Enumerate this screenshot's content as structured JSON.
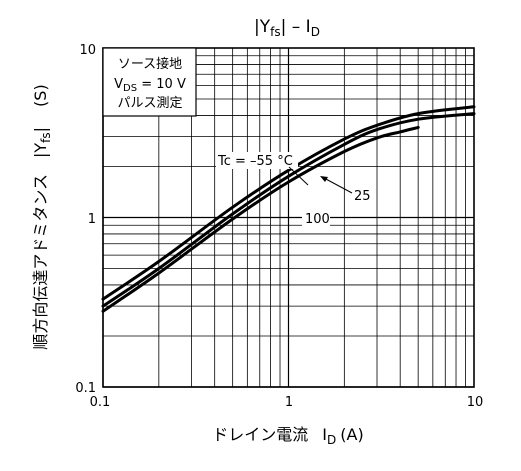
{
  "chart_data": {
    "type": "line",
    "scale": {
      "x": "log",
      "y": "log"
    },
    "grid": true,
    "title": {
      "pre": "|Y",
      "sub": "fs",
      "mid": "| – I",
      "sub2": "D"
    },
    "xlabel": {
      "main": "ドレイン電流",
      "sym": "I",
      "sub": "D",
      "unit": "(A)"
    },
    "ylabel": {
      "main": "順方向伝達アドミタンス",
      "sym": "|Y",
      "sub": "fs",
      "end": "|",
      "unit": "(S)"
    },
    "xlim": [
      0.1,
      10
    ],
    "ylim": [
      0.1,
      10
    ],
    "xticks": [
      {
        "v": 0.1,
        "label": "0.1"
      },
      {
        "v": 1,
        "label": "1"
      },
      {
        "v": 10,
        "label": "10"
      }
    ],
    "yticks": [
      {
        "v": 0.1,
        "label": "0.1"
      },
      {
        "v": 1,
        "label": "1"
      },
      {
        "v": 10,
        "label": "10"
      }
    ],
    "conditions": {
      "line1": "ソース接地",
      "line2": {
        "pre": "V",
        "sub": "DS",
        "post": " = 10 V"
      },
      "line3": "パルス測定"
    },
    "series": [
      {
        "name": "-55",
        "points": [
          [
            0.1,
            0.33
          ],
          [
            0.2,
            0.55
          ],
          [
            0.5,
            1.15
          ],
          [
            1,
            1.9
          ],
          [
            2,
            2.9
          ],
          [
            3,
            3.5
          ],
          [
            5,
            4.1
          ],
          [
            10,
            4.5
          ]
        ]
      },
      {
        "name": "25",
        "points": [
          [
            0.1,
            0.3
          ],
          [
            0.2,
            0.5
          ],
          [
            0.5,
            1.05
          ],
          [
            1,
            1.75
          ],
          [
            2,
            2.7
          ],
          [
            3,
            3.3
          ],
          [
            5,
            3.8
          ],
          [
            10,
            4.1
          ]
        ]
      },
      {
        "name": "100",
        "points": [
          [
            0.1,
            0.28
          ],
          [
            0.2,
            0.47
          ],
          [
            0.5,
            0.98
          ],
          [
            1,
            1.62
          ],
          [
            2,
            2.45
          ],
          [
            3,
            2.95
          ],
          [
            4,
            3.2
          ],
          [
            5,
            3.4
          ]
        ]
      }
    ],
    "annotations": {
      "tc": "Tc = –55 °C",
      "t25": "25",
      "t100": "100"
    }
  }
}
